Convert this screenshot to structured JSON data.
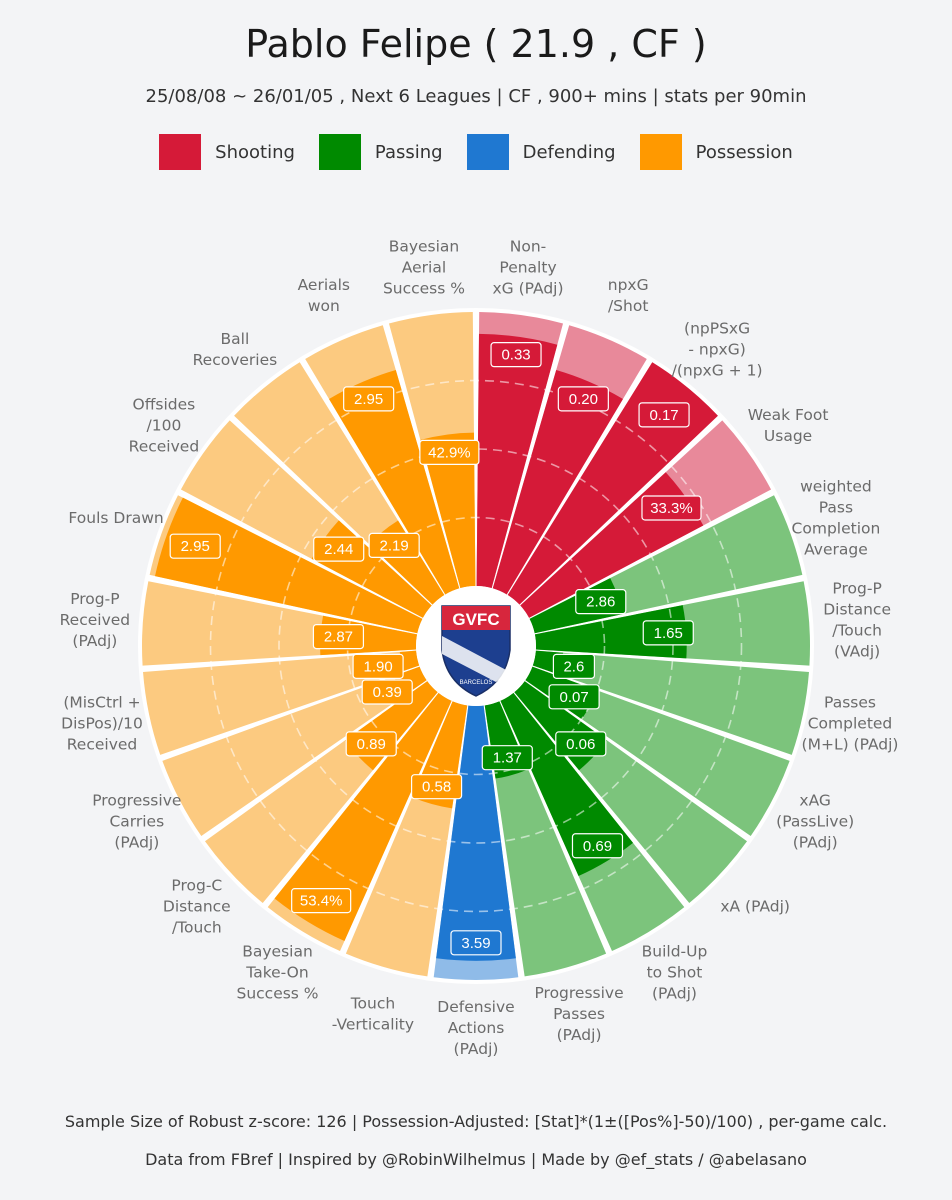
{
  "header": {
    "title": "Pablo Felipe  ( 21.9 , CF )",
    "subtitle": "25/08/08 ~ 26/01/05 , Next 6 Leagues | CF , 900+ mins | stats per 90min"
  },
  "legend": [
    {
      "label": "Shooting",
      "color": "#d51a38"
    },
    {
      "label": "Passing",
      "color": "#008a00"
    },
    {
      "label": "Defending",
      "color": "#1f78d1"
    },
    {
      "label": "Possession",
      "color": "#ff9900"
    }
  ],
  "colors": {
    "Shooting": {
      "full": "#d51a38",
      "light": "#e8899a"
    },
    "Passing": {
      "full": "#008a00",
      "light": "#7cc47c"
    },
    "Defending": {
      "full": "#1f78d1",
      "light": "#8fbbe8"
    },
    "Possession": {
      "full": "#ff9900",
      "light": "#fcca80"
    }
  },
  "badge": {
    "icon": "club-crest-icon",
    "letters": "GVFC",
    "caption": "BARCELOS"
  },
  "chart_data": {
    "type": "polar-bar",
    "title": "Pablo Felipe  ( 21.9 , CF )",
    "max_value": 100,
    "metrics": [
      {
        "label": "Non-\nPenalty\nxG (PAdj)",
        "value_label": "0.33",
        "percentile": 92,
        "group": "Shooting"
      },
      {
        "label": "npxG\n/Shot",
        "value_label": "0.20",
        "percentile": 83,
        "group": "Shooting"
      },
      {
        "label": "(npPSxG\n- npxG)\n/(npxG + 1)",
        "value_label": "0.17",
        "percentile": 100,
        "group": "Shooting"
      },
      {
        "label": "Weak Foot\nUsage",
        "value_label": "33.3%",
        "percentile": 72,
        "group": "Shooting"
      },
      {
        "label": "weighted\nPass\nCompletion\nAverage",
        "value_label": "2.86",
        "percentile": 33,
        "group": "Passing"
      },
      {
        "label": "Prog-P\nDistance\n/Touch\n(VAdj)",
        "value_label": "1.65",
        "percentile": 55,
        "group": "Passing"
      },
      {
        "label": "Passes\nCompleted\n(M+L) (PAdj)",
        "value_label": "2.6",
        "percentile": 10,
        "group": "Passing"
      },
      {
        "label": "xAG\n(PassLive)\n(PAdj)",
        "value_label": "0.07",
        "percentile": 25,
        "group": "Passing"
      },
      {
        "label": "xA (PAdj)",
        "value_label": "0.06",
        "percentile": 37,
        "group": "Passing"
      },
      {
        "label": "Build-Up\nto Shot\n(PAdj)",
        "value_label": "0.69",
        "percentile": 70,
        "group": "Passing"
      },
      {
        "label": "Progressive\nPasses\n(PAdj)",
        "value_label": "1.37",
        "percentile": 27,
        "group": "Passing"
      },
      {
        "label": "Defensive\nActions\n(PAdj)",
        "value_label": "3.59",
        "percentile": 93,
        "group": "Defending"
      },
      {
        "label": "Touch\n-Verticality",
        "value_label": "0.58",
        "percentile": 38,
        "group": "Possession"
      },
      {
        "label": "Bayesian\nTake-On\nSuccess %",
        "value_label": "53.4%",
        "percentile": 96,
        "group": "Possession"
      },
      {
        "label": "Prog-C\nDistance\n/Touch",
        "value_label": "0.89",
        "percentile": 37,
        "group": "Possession"
      },
      {
        "label": "Progressive\nCarries\n(PAdj)",
        "value_label": "0.39",
        "percentile": 10,
        "group": "Possession"
      },
      {
        "label": "(MisCtrl +\nDisPos)/10\nReceived",
        "value_label": "1.90",
        "percentile": 6,
        "group": "Possession"
      },
      {
        "label": "Prog-P\nReceived\n(PAdj)",
        "value_label": "2.87",
        "percentile": 35,
        "group": "Possession"
      },
      {
        "label": "Fouls Drawn",
        "value_label": "2.95",
        "percentile": 98,
        "group": "Possession"
      },
      {
        "label": "Offsides\n/100\nReceived",
        "value_label": "2.44",
        "percentile": 46,
        "group": "Possession"
      },
      {
        "label": "Ball\nRecoveries",
        "value_label": "2.19",
        "percentile": 32,
        "group": "Possession"
      },
      {
        "label": "Aerials\nwon",
        "value_label": "2.95",
        "percentile": 83,
        "group": "Possession"
      },
      {
        "label": "Bayesian\nAerial\nSuccess %",
        "value_label": "42.9%",
        "percentile": 56,
        "group": "Possession"
      }
    ]
  },
  "footer": {
    "line1": "Sample Size of Robust z-score:  126   |  Possession-Adjusted: [Stat]*(1±([Pos%]-50)/100) , per-game calc.",
    "line2": "Data from  FBref   |  Inspired by @RobinWilhelmus   |  Made by @ef_stats / @abelasano"
  }
}
